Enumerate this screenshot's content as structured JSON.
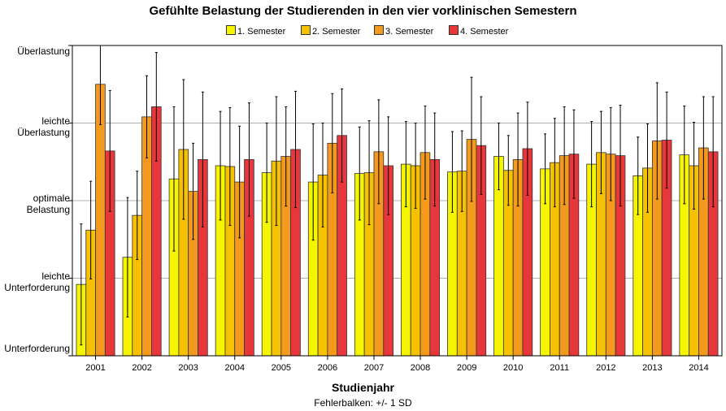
{
  "chart_data": {
    "type": "bar",
    "title": "Gefühlte Belastung der Studierenden in den vier vorklinischen Semestern",
    "xlabel": "Studienjahr",
    "ylabel": "",
    "footnote": "Fehlerbalken: +/- 1 SD",
    "ylim": [
      1,
      5
    ],
    "y_ticks": [
      {
        "value": 1,
        "lines": [
          "Unterforderung"
        ]
      },
      {
        "value": 2,
        "lines": [
          "leichte",
          "Unterforderung"
        ]
      },
      {
        "value": 3,
        "lines": [
          "optimale",
          "Belastung"
        ]
      },
      {
        "value": 4,
        "lines": [
          "leichte",
          "Überlastung"
        ]
      },
      {
        "value": 5,
        "lines": [
          "Überlastung"
        ]
      }
    ],
    "grid": "horizontal",
    "legend_position": "top",
    "error_bars": "+/- 1 SD",
    "categories": [
      "2001",
      "2002",
      "2003",
      "2004",
      "2005",
      "2006",
      "2007",
      "2008",
      "2009",
      "2010",
      "2011",
      "2012",
      "2013",
      "2014"
    ],
    "series": [
      {
        "name": "1. Semester",
        "color": "#f5f500",
        "values": [
          1.92,
          2.27,
          3.28,
          3.45,
          3.36,
          3.24,
          3.35,
          3.47,
          3.37,
          3.57,
          3.41,
          3.47,
          3.32,
          3.59
        ],
        "sd": [
          0.78,
          0.77,
          0.93,
          0.7,
          0.64,
          0.75,
          0.6,
          0.55,
          0.52,
          0.43,
          0.45,
          0.55,
          0.5,
          0.63
        ]
      },
      {
        "name": "2. Semester",
        "color": "#f5c100",
        "values": [
          2.62,
          2.81,
          3.66,
          3.44,
          3.51,
          3.33,
          3.36,
          3.45,
          3.38,
          3.39,
          3.49,
          3.62,
          3.42,
          3.45
        ],
        "sd": [
          0.63,
          0.57,
          0.9,
          0.76,
          0.83,
          0.67,
          0.67,
          0.55,
          0.52,
          0.45,
          0.57,
          0.53,
          0.57,
          0.56
        ]
      },
      {
        "name": "3. Semester",
        "color": "#f39a1e",
        "values": [
          4.5,
          4.08,
          3.12,
          3.24,
          3.57,
          3.74,
          3.63,
          3.62,
          3.79,
          3.53,
          3.58,
          3.6,
          3.77,
          3.68
        ],
        "sd": [
          0.52,
          0.53,
          0.62,
          0.72,
          0.64,
          0.64,
          0.67,
          0.6,
          0.8,
          0.6,
          0.63,
          0.6,
          0.75,
          0.66
        ]
      },
      {
        "name": "4. Semester",
        "color": "#e8373a",
        "values": [
          3.64,
          4.21,
          3.53,
          3.53,
          3.66,
          3.84,
          3.45,
          3.53,
          3.71,
          3.67,
          3.6,
          3.58,
          3.78,
          3.63
        ],
        "sd": [
          0.78,
          0.7,
          0.87,
          0.73,
          0.75,
          0.6,
          0.63,
          0.6,
          0.63,
          0.6,
          0.57,
          0.65,
          0.62,
          0.71
        ]
      }
    ]
  }
}
